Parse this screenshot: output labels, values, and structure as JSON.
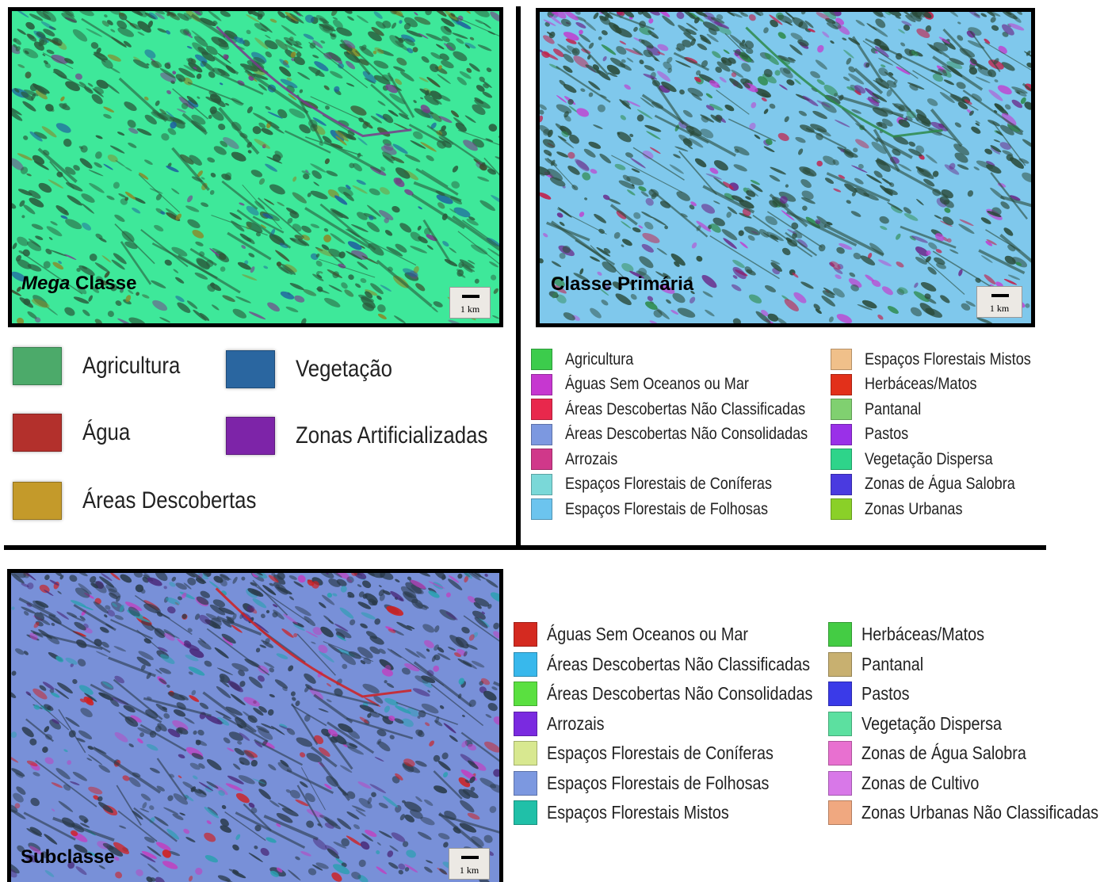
{
  "panels": [
    {
      "label_italic": "Mega",
      "label": " Classe",
      "scale_text": "1 km",
      "base_color": "#3ee89a",
      "texture_colors": [
        "#2a5a3c",
        "#1f5fa0",
        "#3d4a2c",
        "#7a3a8a",
        "#8a8a2a"
      ],
      "legend": [
        {
          "label": "Agricultura",
          "color": "#4caa6a"
        },
        {
          "label": "Vegetação",
          "color": "#2a66a0"
        },
        {
          "label": "Água",
          "color": "#b3302c"
        },
        {
          "label": "Zonas Artificializadas",
          "color": "#7d24a8"
        },
        {
          "label": "Áreas Descobertas",
          "color": "#c49a2a"
        }
      ]
    },
    {
      "label_italic": "",
      "label": "Classe Primária",
      "scale_text": "1 km",
      "base_color": "#7fc8ec",
      "texture_colors": [
        "#2a4a3a",
        "#c2204a",
        "#6a2a8a",
        "#2e8a4a",
        "#c040d0"
      ],
      "legend": [
        {
          "label": "Agricultura",
          "color": "#3ccc4c"
        },
        {
          "label": "Águas Sem Oceanos ou Mar",
          "color": "#c637d0"
        },
        {
          "label": "Áreas Descobertas Não Classificadas",
          "color": "#e8284c"
        },
        {
          "label": "Áreas Descobertas Não Consolidadas",
          "color": "#7c98e0"
        },
        {
          "label": "Arrozais",
          "color": "#d0388a"
        },
        {
          "label": "Espaços Florestais de Coníferas",
          "color": "#7ad8d8"
        },
        {
          "label": "Espaços Florestais de Folhosas",
          "color": "#6cc4ee"
        },
        {
          "label": "Espaços Florestais Mistos",
          "color": "#f0c08a"
        },
        {
          "label": "Herbáceas/Matos",
          "color": "#e2301a"
        },
        {
          "label": "Pantanal",
          "color": "#80d070"
        },
        {
          "label": "Pastos",
          "color": "#9a30e8"
        },
        {
          "label": "Vegetação Dispersa",
          "color": "#2ed48a"
        },
        {
          "label": "Zonas de Água Salobra",
          "color": "#4a3ae0"
        },
        {
          "label": "Zonas Urbanas",
          "color": "#8ad028"
        }
      ]
    },
    {
      "label_italic": "",
      "label": "Subclasse",
      "scale_text": "1 km",
      "base_color": "#7890d8",
      "texture_colors": [
        "#2a3a4a",
        "#4a2a7a",
        "#2aa0b0",
        "#d02020",
        "#c040c0"
      ],
      "legend": [
        {
          "label": "Águas Sem Oceanos ou Mar",
          "color": "#d42a20"
        },
        {
          "label": "Áreas Descobertas Não Classificadas",
          "color": "#38b8ec"
        },
        {
          "label": "Áreas Descobertas Não Consolidadas",
          "color": "#5ae040"
        },
        {
          "label": "Arrozais",
          "color": "#7a2ae0"
        },
        {
          "label": "Espaços Florestais de Coníferas",
          "color": "#d8e890"
        },
        {
          "label": "Espaços Florestais de Folhosas",
          "color": "#7c98e0"
        },
        {
          "label": "Espaços Florestais Mistos",
          "color": "#20c0a8"
        },
        {
          "label": "Herbáceas/Matos",
          "color": "#44cc44"
        },
        {
          "label": "Pantanal",
          "color": "#c8b070"
        },
        {
          "label": "Pastos",
          "color": "#3a3ae8"
        },
        {
          "label": "Vegetação Dispersa",
          "color": "#5ce0a0"
        },
        {
          "label": "Zonas de Água Salobra",
          "color": "#e870d0"
        },
        {
          "label": "Zonas de Cultivo",
          "color": "#d878e8"
        },
        {
          "label": "Zonas Urbanas Não Classificadas",
          "color": "#f0a880"
        }
      ]
    }
  ]
}
